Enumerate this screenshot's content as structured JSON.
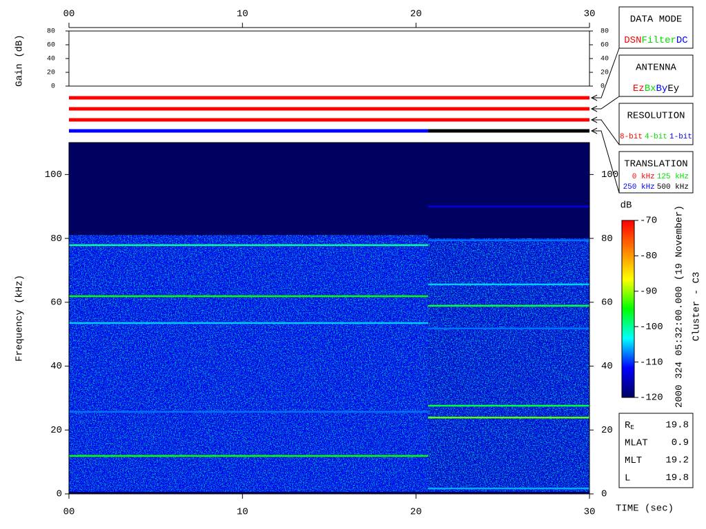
{
  "chart_data": {
    "type": "spectrogram",
    "xlabel": "TIME (sec)",
    "xlim": [
      0,
      30
    ],
    "xticks": [
      {
        "value": 0,
        "label": "00"
      },
      10,
      20,
      30
    ],
    "ylabel": "Frequency (kHz)",
    "ylim": [
      0,
      110
    ],
    "yticks": [
      0,
      20,
      40,
      60,
      80,
      100
    ],
    "gain": {
      "ylabel": "Gain (dB)",
      "ylim": [
        0,
        80
      ],
      "yticks": [
        0,
        20,
        40,
        60,
        80
      ]
    },
    "status_rows": [
      {
        "title": "DATA MODE",
        "options": [
          {
            "name": "DSN",
            "color": "#ff0000"
          },
          {
            "name": "Filter",
            "color": "#00dd00"
          },
          {
            "name": "DC",
            "color": "#0000ff"
          }
        ],
        "segments": [
          {
            "start": 0,
            "end": 30,
            "color": "#ff0000"
          }
        ]
      },
      {
        "title": "ANTENNA",
        "options": [
          {
            "name": "Ez",
            "color": "#ff0000"
          },
          {
            "name": "Bx",
            "color": "#00dd00"
          },
          {
            "name": "By",
            "color": "#0000ff"
          },
          {
            "name": "Ey",
            "color": "#000000"
          }
        ],
        "segments": [
          {
            "start": 0,
            "end": 30,
            "color": "#ff0000"
          }
        ]
      },
      {
        "title": "RESOLUTION",
        "options": [
          {
            "name": "8-bit",
            "color": "#ff0000"
          },
          {
            "name": "4-bit",
            "color": "#00dd00"
          },
          {
            "name": "1-bit",
            "color": "#0000ff"
          }
        ],
        "segments": [
          {
            "start": 0,
            "end": 30,
            "color": "#ff0000"
          }
        ]
      },
      {
        "title": "TRANSLATION",
        "options": [
          {
            "name": "0 kHz",
            "color": "#ff0000"
          },
          {
            "name": "125 kHz",
            "color": "#00dd00"
          },
          {
            "name": "250 kHz",
            "color": "#0000ff"
          },
          {
            "name": "500 kHz",
            "color": "#000000"
          }
        ],
        "segments": [
          {
            "start": 0,
            "end": 20.7,
            "color": "#0000ff"
          },
          {
            "start": 20.7,
            "end": 30,
            "color": "#000000"
          }
        ]
      }
    ],
    "colorbar": {
      "label": "dB",
      "lim": [
        -120,
        -70
      ],
      "ticks": [
        -70,
        -80,
        -90,
        -100,
        -110,
        -120
      ],
      "colors": [
        "#000060",
        "#0000ff",
        "#00ffff",
        "#00ff00",
        "#ffff00",
        "#ff8000",
        "#ff0000"
      ]
    },
    "floor": -120,
    "background": [
      {
        "start": 0,
        "end": 20.7,
        "noise_top": 81,
        "level": -113
      },
      {
        "start": 20.7,
        "end": 30,
        "noise_top": 80,
        "level": -114
      }
    ],
    "lines": [
      {
        "start": 0,
        "end": 20.7,
        "freq": 77.9,
        "level": -100
      },
      {
        "start": 0,
        "end": 20.7,
        "freq": 61.9,
        "level": -95
      },
      {
        "start": 0,
        "end": 20.7,
        "freq": 53.5,
        "level": -105
      },
      {
        "start": 0,
        "end": 20.7,
        "freq": 25.7,
        "level": -108
      },
      {
        "start": 0,
        "end": 20.7,
        "freq": 11.9,
        "level": -95
      },
      {
        "start": 20.7,
        "end": 30,
        "freq": 90,
        "level": -113
      },
      {
        "start": 20.7,
        "end": 30,
        "freq": 79.4,
        "level": -108
      },
      {
        "start": 20.7,
        "end": 30,
        "freq": 65.6,
        "level": -105
      },
      {
        "start": 20.7,
        "end": 30,
        "freq": 58.9,
        "level": -97
      },
      {
        "start": 20.7,
        "end": 30,
        "freq": 51.8,
        "level": -108
      },
      {
        "start": 20.7,
        "end": 30,
        "freq": 27.6,
        "level": -97
      },
      {
        "start": 20.7,
        "end": 30,
        "freq": 23.9,
        "level": -92
      },
      {
        "start": 20.7,
        "end": 30,
        "freq": 1.7,
        "level": -106
      }
    ],
    "annotations": [
      "2000 324 05:32:00.000 (19 November)",
      "Cluster - C3"
    ],
    "info": [
      {
        "label": "R",
        "subscript": "E",
        "value": 19.8
      },
      {
        "label": "MLAT",
        "value": 0.9
      },
      {
        "label": "MLT",
        "value": 19.2
      },
      {
        "label": "L",
        "value": 19.8
      }
    ]
  }
}
